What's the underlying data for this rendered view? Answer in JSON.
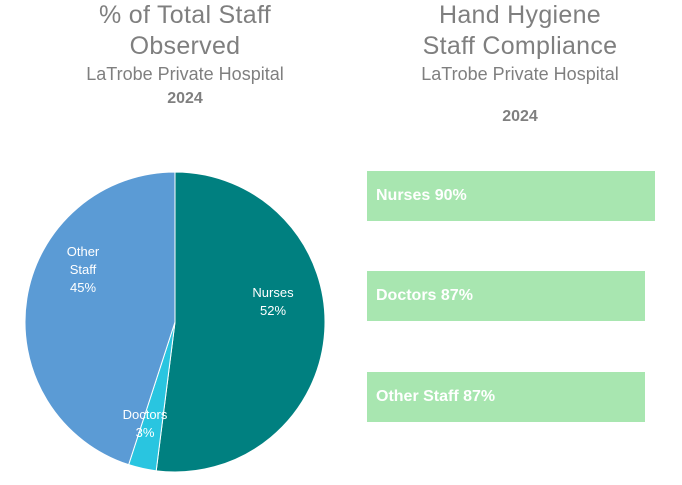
{
  "chart_data": [
    {
      "type": "pie",
      "title": "% of Total Staff Observed",
      "subtitle": "LaTrobe Private Hospital",
      "year": "2024",
      "slices": [
        {
          "name": "Nurses",
          "label": "Nurses",
          "value": 52,
          "value_label": "52%",
          "color": "#008080"
        },
        {
          "name": "Doctors",
          "label": "Doctors",
          "value": 3,
          "value_label": "3%",
          "color": "#29c5e0"
        },
        {
          "name": "Other Staff",
          "label": "Other Staff",
          "label_lines": [
            "Other",
            "Staff"
          ],
          "value": 45,
          "value_label": "45%",
          "color": "#5b9bd5"
        }
      ]
    },
    {
      "type": "bar",
      "orientation": "horizontal",
      "title": "Hand Hygiene Staff Compliance",
      "subtitle": "LaTrobe Private Hospital",
      "year": "2024",
      "bar_color": "#a8e6b0",
      "bars": [
        {
          "category": "Nurses",
          "value": 90,
          "label": "Nurses 90%"
        },
        {
          "category": "Doctors",
          "value": 87,
          "label": "Doctors 87%"
        },
        {
          "category": "Other Staff",
          "value": 87,
          "label": "Other Staff 87%"
        }
      ]
    }
  ],
  "left_header": {
    "title_line1": "% of Total Staff",
    "title_line2": "Observed",
    "subtitle": "LaTrobe Private Hospital",
    "year": "2024"
  },
  "right_header": {
    "title_line1": "Hand Hygiene",
    "title_line2": "Staff Compliance",
    "subtitle": "LaTrobe Private Hospital",
    "year": "2024"
  }
}
